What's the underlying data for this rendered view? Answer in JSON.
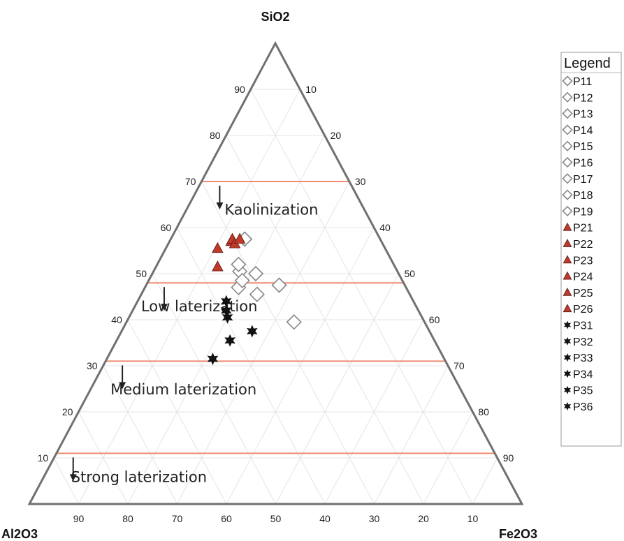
{
  "chart_data": {
    "type": "ternary-scatter",
    "axes": {
      "top": "SiO2",
      "left": "Al2O3",
      "right": "Fe2O3",
      "range": [
        0,
        100
      ],
      "left_ticks": [
        90,
        80,
        70,
        60,
        50,
        40,
        30,
        20,
        10
      ],
      "right_ticks": [
        10,
        20,
        30,
        40,
        50,
        60,
        70,
        80,
        90
      ],
      "bottom_ticks": [
        90,
        80,
        70,
        60,
        50,
        40,
        30,
        20,
        10
      ],
      "grid": true
    },
    "vertex_labels": {
      "top": "SiO2",
      "left": "Al2O3",
      "right": "Fe2O3"
    },
    "boundaries": [
      {
        "sio2": 70,
        "color": "#f08a72"
      },
      {
        "sio2": 48,
        "color": "#f08a72"
      },
      {
        "sio2": 31,
        "color": "#f08a72"
      },
      {
        "sio2": 11,
        "color": "#f08a72"
      }
    ],
    "zones": [
      {
        "label": "Kaolinization",
        "sio2": 64
      },
      {
        "label": "Low laterization",
        "sio2": 43
      },
      {
        "label": "Medium laterization",
        "sio2": 25
      },
      {
        "label": "Strong laterization",
        "sio2": 6
      }
    ],
    "legend": {
      "title": "Legend",
      "position": "right"
    },
    "series": [
      {
        "name": "P11",
        "marker": "diamond",
        "color": "#888888",
        "sio2": 57.5,
        "al2o3": 27.5,
        "fe2o3": 15.0
      },
      {
        "name": "P12",
        "marker": "diamond",
        "color": "#888888",
        "sio2": 50.5,
        "al2o3": 32.0,
        "fe2o3": 17.5
      },
      {
        "name": "P13",
        "marker": "diamond",
        "color": "#888888",
        "sio2": 52.0,
        "al2o3": 31.5,
        "fe2o3": 16.5
      },
      {
        "name": "P14",
        "marker": "diamond",
        "color": "#888888",
        "sio2": 50.0,
        "al2o3": 29.0,
        "fe2o3": 21.0
      },
      {
        "name": "P15",
        "marker": "diamond",
        "color": "#888888",
        "sio2": 47.0,
        "al2o3": 34.0,
        "fe2o3": 19.0
      },
      {
        "name": "P16",
        "marker": "diamond",
        "color": "#888888",
        "sio2": 48.5,
        "al2o3": 32.5,
        "fe2o3": 19.0
      },
      {
        "name": "P17",
        "marker": "diamond",
        "color": "#888888",
        "sio2": 45.5,
        "al2o3": 31.0,
        "fe2o3": 23.5
      },
      {
        "name": "P18",
        "marker": "diamond",
        "color": "#888888",
        "sio2": 47.5,
        "al2o3": 25.5,
        "fe2o3": 27.0
      },
      {
        "name": "P19",
        "marker": "diamond",
        "color": "#888888",
        "sio2": 39.5,
        "al2o3": 26.5,
        "fe2o3": 34.0
      },
      {
        "name": "P21",
        "marker": "triangle",
        "color": "#c0392b",
        "sio2": 57.0,
        "al2o3": 30.5,
        "fe2o3": 12.5
      },
      {
        "name": "P22",
        "marker": "triangle",
        "color": "#c0392b",
        "sio2": 57.5,
        "al2o3": 30.0,
        "fe2o3": 12.5
      },
      {
        "name": "P23",
        "marker": "triangle",
        "color": "#c0392b",
        "sio2": 56.5,
        "al2o3": 30.0,
        "fe2o3": 13.5
      },
      {
        "name": "P24",
        "marker": "triangle",
        "color": "#c0392b",
        "sio2": 55.5,
        "al2o3": 34.0,
        "fe2o3": 10.5
      },
      {
        "name": "P25",
        "marker": "triangle",
        "color": "#c0392b",
        "sio2": 57.5,
        "al2o3": 28.5,
        "fe2o3": 14.0
      },
      {
        "name": "P26",
        "marker": "triangle",
        "color": "#c0392b",
        "sio2": 51.5,
        "al2o3": 36.0,
        "fe2o3": 12.5
      },
      {
        "name": "P31",
        "marker": "star",
        "color": "#111111",
        "sio2": 44.0,
        "al2o3": 38.0,
        "fe2o3": 18.0
      },
      {
        "name": "P32",
        "marker": "star",
        "color": "#111111",
        "sio2": 42.0,
        "al2o3": 39.0,
        "fe2o3": 19.0
      },
      {
        "name": "P33",
        "marker": "star",
        "color": "#111111",
        "sio2": 40.5,
        "al2o3": 39.5,
        "fe2o3": 20.0
      },
      {
        "name": "P34",
        "marker": "star",
        "color": "#111111",
        "sio2": 37.5,
        "al2o3": 36.0,
        "fe2o3": 26.5
      },
      {
        "name": "P35",
        "marker": "star",
        "color": "#111111",
        "sio2": 35.5,
        "al2o3": 41.5,
        "fe2o3": 23.0
      },
      {
        "name": "P36",
        "marker": "star",
        "color": "#111111",
        "sio2": 31.5,
        "al2o3": 47.0,
        "fe2o3": 21.5
      }
    ]
  }
}
